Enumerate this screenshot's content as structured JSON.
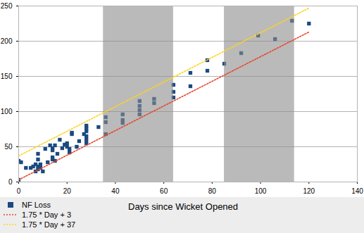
{
  "chart_data": {
    "type": "scatter",
    "x_label": "Days since Wicket Opened",
    "xlim": [
      0,
      140
    ],
    "xticks": [
      0,
      20,
      40,
      60,
      80,
      100,
      120,
      140
    ],
    "ylim": [
      0,
      250
    ],
    "yticks": [
      0,
      50,
      100,
      150,
      200,
      250
    ],
    "grid": true,
    "legend": "bottom",
    "shaded_ranges": [
      [
        35,
        64
      ],
      [
        85,
        114
      ]
    ],
    "series": [
      {
        "name": "NF Loss",
        "type": "scatter",
        "marker": "square",
        "color": "#1a4a80",
        "x": [
          0,
          0,
          1,
          3,
          5,
          6,
          7,
          7,
          8,
          8,
          8,
          8,
          9,
          9,
          10,
          11,
          12,
          13,
          14,
          14,
          14,
          14,
          15,
          15,
          16,
          17,
          18,
          19,
          20,
          20,
          21,
          21,
          22,
          22,
          24,
          25,
          27,
          28,
          28,
          28,
          28,
          28,
          28,
          33,
          36,
          36,
          36,
          43,
          43,
          43,
          50,
          50,
          50,
          50,
          56,
          56,
          64,
          64,
          64,
          71,
          71,
          78,
          78,
          85,
          92,
          99,
          106,
          113,
          120
        ],
        "values": [
          3,
          30,
          28,
          20,
          20,
          22,
          25,
          15,
          18,
          22,
          32,
          40,
          20,
          25,
          15,
          47,
          28,
          52,
          48,
          45,
          35,
          32,
          30,
          52,
          40,
          60,
          48,
          53,
          50,
          55,
          47,
          42,
          68,
          70,
          50,
          58,
          68,
          72,
          60,
          65,
          80,
          76,
          55,
          78,
          92,
          85,
          68,
          96,
          88,
          84,
          115,
          108,
          102,
          96,
          118,
          112,
          138,
          128,
          120,
          155,
          136,
          173,
          158,
          168,
          183,
          208,
          203,
          229,
          225
        ]
      },
      {
        "name": "1.75 * Day + 3",
        "type": "line",
        "line_style": "dotted",
        "color": "#e8452a",
        "x": [
          0,
          120
        ],
        "values": [
          3,
          213
        ]
      },
      {
        "name": "1.75 * Day + 37",
        "type": "line",
        "line_style": "dotted",
        "color": "#ffd320",
        "x": [
          0,
          120
        ],
        "values": [
          37,
          247
        ]
      }
    ]
  }
}
